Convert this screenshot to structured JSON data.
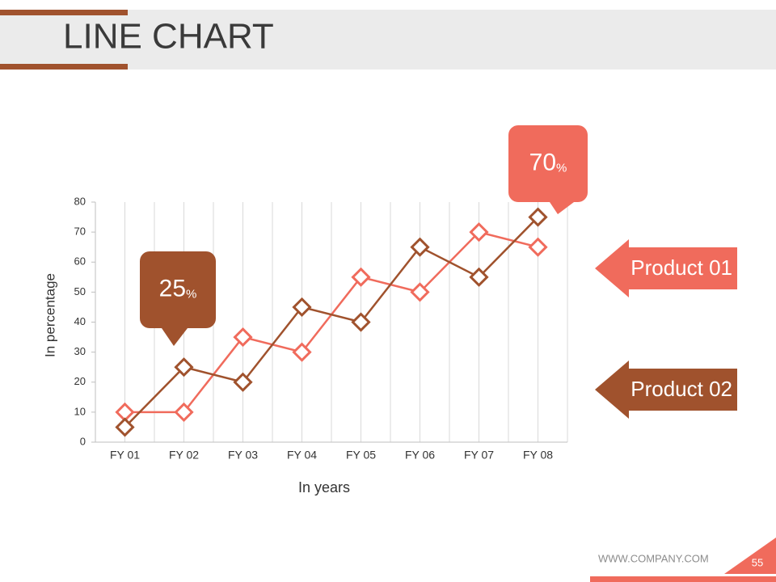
{
  "chart_data": {
    "type": "line",
    "title": "LINE CHART",
    "x_label": "In years",
    "y_label": "In percentage",
    "categories": [
      "FY 01",
      "FY 02",
      "FY 03",
      "FY 04",
      "FY 05",
      "FY 06",
      "FY 07",
      "FY 08"
    ],
    "series": [
      {
        "name": "Product 01",
        "color": "#f06b5c",
        "values": [
          10,
          10,
          35,
          30,
          55,
          50,
          70,
          65
        ]
      },
      {
        "name": "Product 02",
        "color": "#a0522d",
        "values": [
          5,
          25,
          20,
          45,
          40,
          65,
          55,
          75
        ]
      }
    ],
    "ylim": [
      0,
      80
    ],
    "yticks": [
      0,
      10,
      20,
      30,
      40,
      50,
      60,
      70,
      80
    ],
    "grid": "x",
    "annotations": [
      {
        "value": 25,
        "unit": "%",
        "color": "#a0522d"
      },
      {
        "value": 70,
        "unit": "%",
        "color": "#f06b5c"
      }
    ]
  },
  "footer": {
    "website": "WWW.COMPANY.COM",
    "page": "55"
  }
}
